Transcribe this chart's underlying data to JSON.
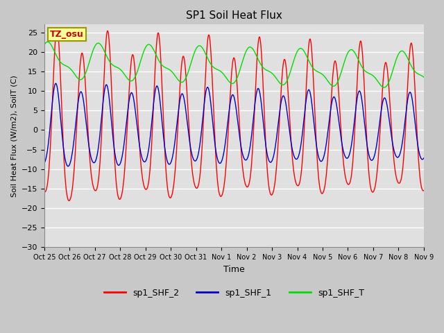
{
  "title": "SP1 Soil Heat Flux",
  "ylabel": "Soil Heat Flux (W/m2), SoilT (C)",
  "xlabel": "Time",
  "ylim": [
    -30,
    27
  ],
  "yticks": [
    -30,
    -25,
    -20,
    -15,
    -10,
    -5,
    0,
    5,
    10,
    15,
    20,
    25
  ],
  "xtick_labels": [
    "Oct 25",
    "Oct 26",
    "Oct 27",
    "Oct 28",
    "Oct 29",
    "Oct 30",
    "Oct 31",
    "Nov 1",
    "Nov 2",
    "Nov 3",
    "Nov 4",
    "Nov 5",
    "Nov 6",
    "Nov 7",
    "Nov 8",
    "Nov 9"
  ],
  "color_red": "#ff0000",
  "color_blue": "#0000cc",
  "color_green": "#00dd00",
  "fig_bg": "#c8c8c8",
  "plot_bg": "#e0e0e0",
  "grid_color": "#ffffff",
  "legend_labels": [
    "sp1_SHF_2",
    "sp1_SHF_1",
    "sp1_SHF_T"
  ],
  "annotation_text": "TZ_osu",
  "annotation_color": "#cc0000",
  "annotation_bg": "#ffff99",
  "annotation_border": "#999900",
  "n_points": 3000
}
